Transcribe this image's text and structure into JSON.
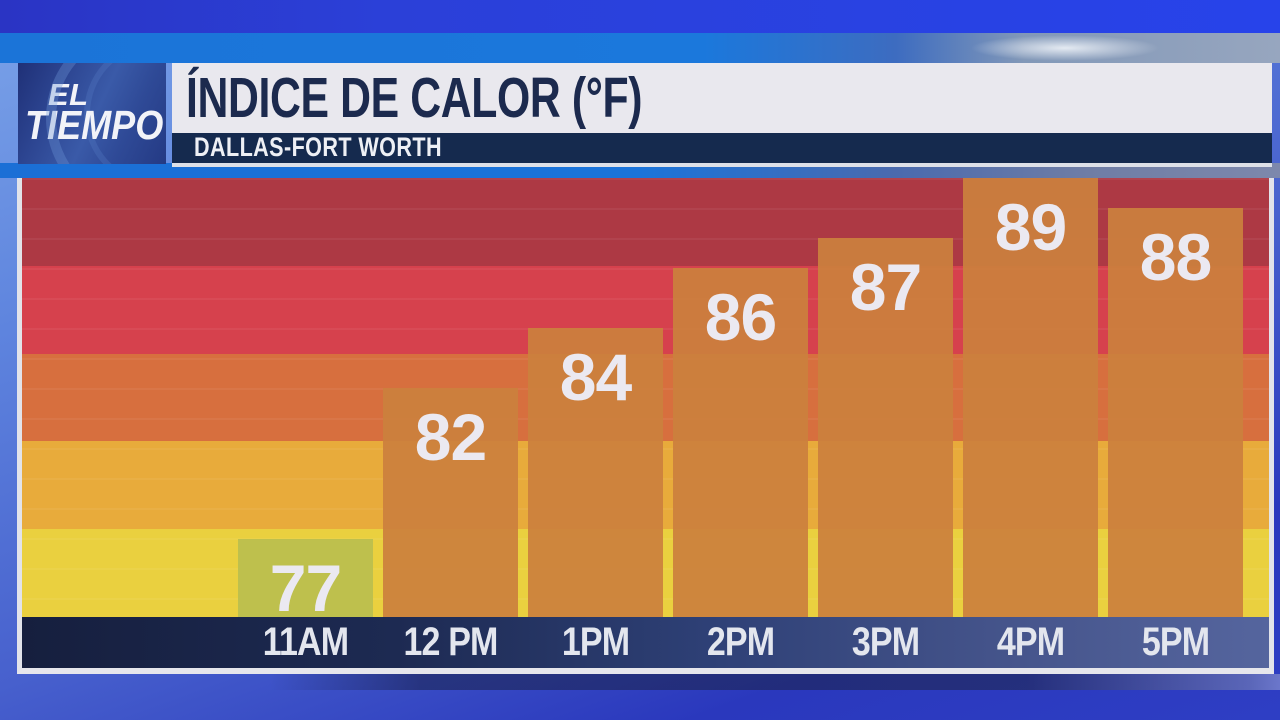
{
  "header": {
    "logo": {
      "line1": "EL",
      "line2": "TIEMPO"
    },
    "title": "ÍNDICE DE CALOR (°F)",
    "subtitle": "DALLAS-FORT WORTH"
  },
  "chart_data": {
    "type": "bar",
    "title": "ÍNDICE DE CALOR (°F)",
    "subtitle": "DALLAS-FORT WORTH",
    "unit": "°F",
    "categories": [
      "11AM",
      "12 PM",
      "1PM",
      "2PM",
      "3PM",
      "4PM",
      "5PM"
    ],
    "values": [
      77,
      82,
      84,
      86,
      87,
      89,
      88
    ],
    "ylim": [
      74.4,
      89
    ],
    "grid": false,
    "legend": false,
    "value_labels": "inside-top",
    "background_bands": [
      "#ad3944",
      "#d6414d",
      "#d76f3e",
      "#e8ab3b",
      "#ead03f"
    ],
    "bar_color_default": "rgba(203,128,61,0.93)",
    "bar_color_overrides": {
      "11AM": "rgba(188,191,78,0.95)"
    },
    "value_label_color": "#ebe9f1",
    "axis_label_color": "#e3e6ee"
  }
}
